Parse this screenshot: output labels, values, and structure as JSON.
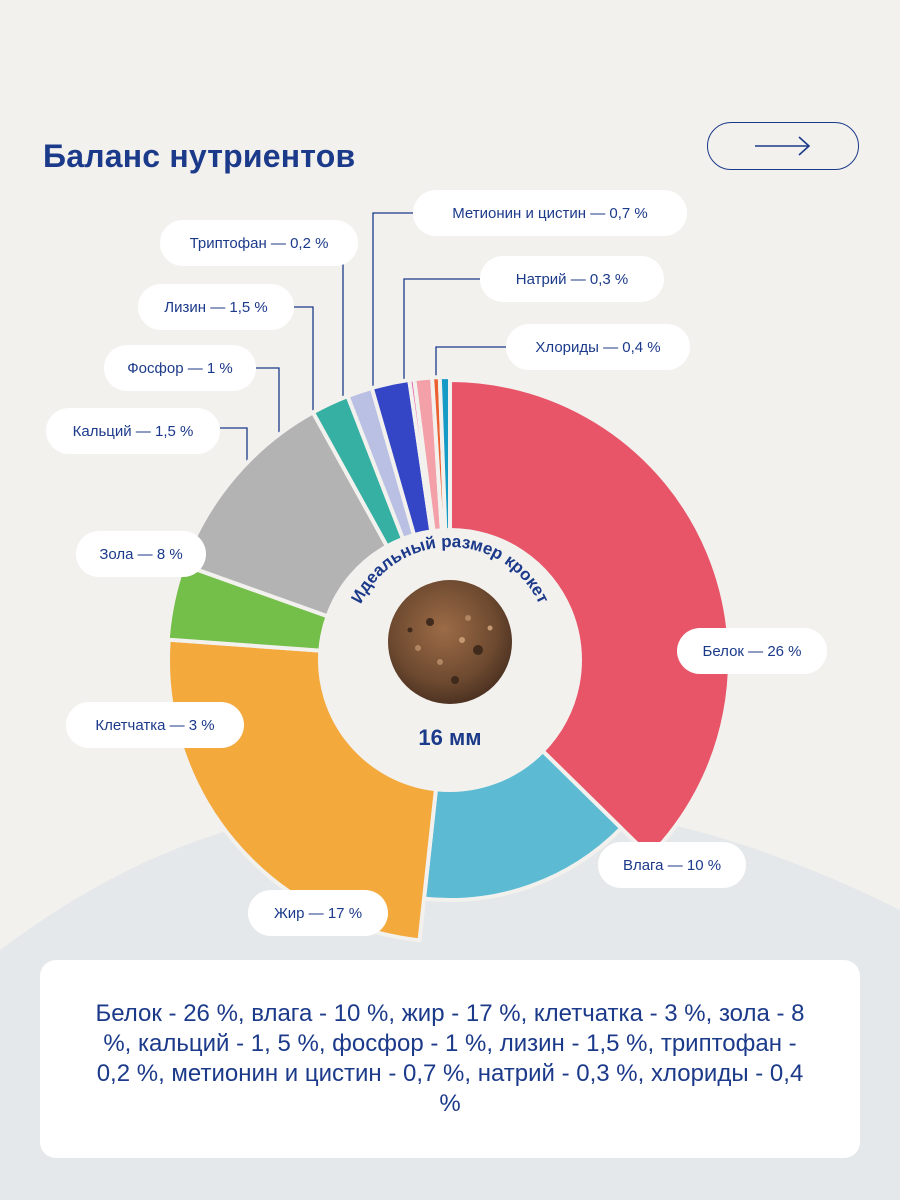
{
  "page": {
    "title": "Баланс нутриентов",
    "next_icon": "arrow-right-icon",
    "summary": "Белок - 26 %, влага - 10 %, жир - 17 %, клетчатка - 3 %, зола - 8 %, кальций - 1, 5 %, фосфор - 1 %, лизин - 1,5 %, триптофан - 0,2 %, метионин и цистин - 0,7 %, натрий - 0,3 %, хлориды - 0,4 %"
  },
  "colors": {
    "title": "#1c3a8a",
    "background": "#f2f1ee",
    "bottom_wave": "#e5e8ea",
    "card": "#ffffff"
  },
  "center": {
    "caption": "Идеальный размер крокет",
    "size": "16 мм",
    "image": "kibble-pellet"
  },
  "chart_data": {
    "type": "pie",
    "style": "donut",
    "series": [
      {
        "name": "Белок",
        "value": 26,
        "label": "Белок — 26 %",
        "color": "#e85468"
      },
      {
        "name": "Влага",
        "value": 10,
        "label": "Влага — 10 %",
        "color": "#5cbbd3"
      },
      {
        "name": "Жир",
        "value": 17,
        "label": "Жир — 17 %",
        "color": "#f4a93d"
      },
      {
        "name": "Клетчатка",
        "value": 3,
        "label": "Клетчатка — 3 %",
        "color": "#74be4a"
      },
      {
        "name": "Зола",
        "value": 8,
        "label": "Зола — 8 %",
        "color": "#b3b3b4"
      },
      {
        "name": "Кальций",
        "value": 1.5,
        "label": "Кальций — 1,5 %",
        "color": "#35b0a2"
      },
      {
        "name": "Фосфор",
        "value": 1,
        "label": "Фосфор — 1 %",
        "color": "#b9c0e3"
      },
      {
        "name": "Лизин",
        "value": 1.5,
        "label": "Лизин — 1,5 %",
        "color": "#3446c6"
      },
      {
        "name": "Триптофан",
        "value": 0.2,
        "label": "Триптофан — 0,2 %",
        "color": "#ea64a9"
      },
      {
        "name": "Метионин и цистин",
        "value": 0.7,
        "label": "Метионин и цистин — 0,7 %",
        "color": "#f3a0a9"
      },
      {
        "name": "Натрий",
        "value": 0.3,
        "label": "Натрий — 0,3 %",
        "color": "#ec5f2f"
      },
      {
        "name": "Хлориды",
        "value": 0.4,
        "label": "Хлориды — 0,4 %",
        "color": "#169bc6"
      }
    ]
  }
}
